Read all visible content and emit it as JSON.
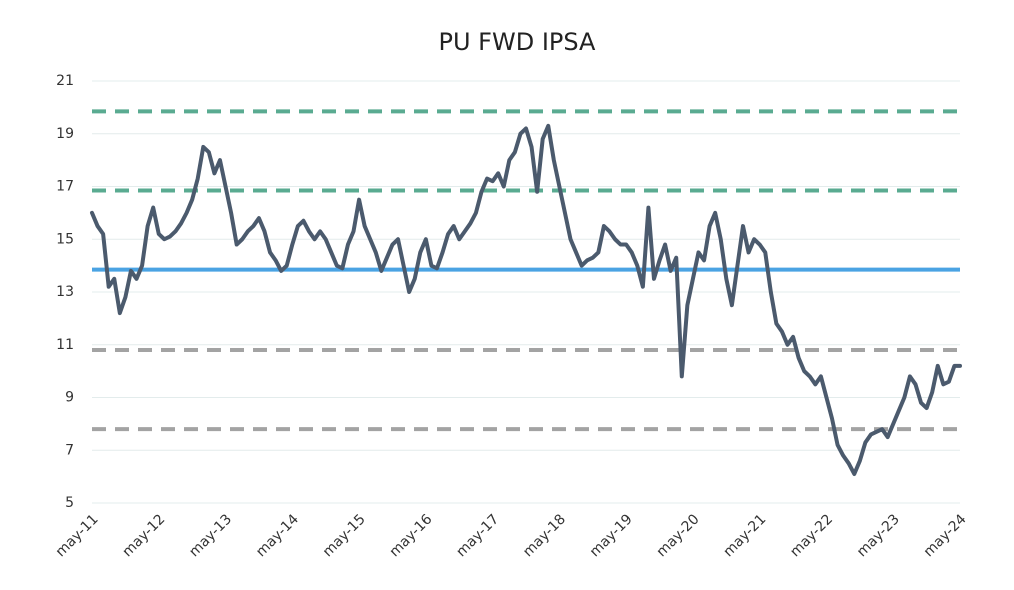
{
  "chart_data": {
    "type": "line",
    "title": "PU FWD IPSA",
    "categories": [
      "may-11",
      null,
      null,
      null,
      null,
      null,
      null,
      null,
      null,
      null,
      null,
      null,
      "may-12",
      null,
      null,
      null,
      null,
      null,
      null,
      null,
      null,
      null,
      null,
      null,
      "may-13",
      null,
      null,
      null,
      null,
      null,
      null,
      null,
      null,
      null,
      null,
      null,
      "may-14",
      null,
      null,
      null,
      null,
      null,
      null,
      null,
      null,
      null,
      null,
      null,
      "may-15",
      null,
      null,
      null,
      null,
      null,
      null,
      null,
      null,
      null,
      null,
      null,
      "may-16",
      null,
      null,
      null,
      null,
      null,
      null,
      null,
      null,
      null,
      null,
      null,
      "may-17",
      null,
      null,
      null,
      null,
      null,
      null,
      null,
      null,
      null,
      null,
      null,
      "may-18",
      null,
      null,
      null,
      null,
      null,
      null,
      null,
      null,
      null,
      null,
      null,
      "may-19",
      null,
      null,
      null,
      null,
      null,
      null,
      null,
      null,
      null,
      null,
      null,
      "may-20",
      null,
      null,
      null,
      null,
      null,
      null,
      null,
      null,
      null,
      null,
      null,
      "may-21",
      null,
      null,
      null,
      null,
      null,
      null,
      null,
      null,
      null,
      null,
      null,
      "may-22",
      null,
      null,
      null,
      null,
      null,
      null,
      null,
      null,
      null,
      null,
      null,
      "may-23",
      null,
      null,
      null,
      null,
      null,
      null,
      null,
      null,
      null,
      null,
      null,
      "may-24"
    ],
    "series": [
      {
        "color": "#4b5a6d",
        "values": [
          16.0,
          15.5,
          15.2,
          13.2,
          13.5,
          12.2,
          12.8,
          13.8,
          13.5,
          14.0,
          15.5,
          16.2,
          15.2,
          15.0,
          15.1,
          15.3,
          15.6,
          16.0,
          16.5,
          17.3,
          18.5,
          18.3,
          17.5,
          18.0,
          17.0,
          16.0,
          14.8,
          15.0,
          15.3,
          15.5,
          15.8,
          15.3,
          14.5,
          14.2,
          13.8,
          14.0,
          14.8,
          15.5,
          15.7,
          15.3,
          15.0,
          15.3,
          15.0,
          14.5,
          14.0,
          13.9,
          14.8,
          15.3,
          16.5,
          15.5,
          15.0,
          14.5,
          13.8,
          14.3,
          14.8,
          15.0,
          14.0,
          13.0,
          13.5,
          14.5,
          15.0,
          14.0,
          13.9,
          14.5,
          15.2,
          15.5,
          15.0,
          15.3,
          15.6,
          16.0,
          16.8,
          17.3,
          17.2,
          17.5,
          17.0,
          18.0,
          18.3,
          19.0,
          19.2,
          18.5,
          16.8,
          18.8,
          19.3,
          18.0,
          17.0,
          16.0,
          15.0,
          14.5,
          14.0,
          14.2,
          14.3,
          14.5,
          15.5,
          15.3,
          15.0,
          14.8,
          14.8,
          14.5,
          14.0,
          13.2,
          16.2,
          13.5,
          14.2,
          14.8,
          13.8,
          14.3,
          9.8,
          12.5,
          13.5,
          14.5,
          14.2,
          15.5,
          16.0,
          15.0,
          13.5,
          12.5,
          14.0,
          15.5,
          14.5,
          15.0,
          14.8,
          14.5,
          13.0,
          11.8,
          11.5,
          11.0,
          11.3,
          10.5,
          10.0,
          9.8,
          9.5,
          9.8,
          9.0,
          8.2,
          7.2,
          6.8,
          6.5,
          6.1,
          6.6,
          7.3,
          7.6,
          7.7,
          7.8,
          7.5,
          8.0,
          8.5,
          9.0,
          9.8,
          9.5,
          8.8,
          8.6,
          9.2,
          10.2,
          9.5,
          9.6,
          10.2,
          10.2
        ]
      }
    ],
    "reference_lines": [
      {
        "value": 19.85,
        "color": "#5aab91",
        "style": "dashed"
      },
      {
        "value": 16.85,
        "color": "#5aab91",
        "style": "dashed"
      },
      {
        "value": 13.85,
        "color": "#4aa3e3",
        "style": "solid"
      },
      {
        "value": 10.8,
        "color": "#a3a3a3",
        "style": "dashed"
      },
      {
        "value": 7.8,
        "color": "#a3a3a3",
        "style": "dashed"
      }
    ],
    "ylim": [
      5,
      21
    ],
    "yticks": [
      5,
      7,
      9,
      11,
      13,
      15,
      17,
      19,
      21
    ],
    "grid": true
  }
}
